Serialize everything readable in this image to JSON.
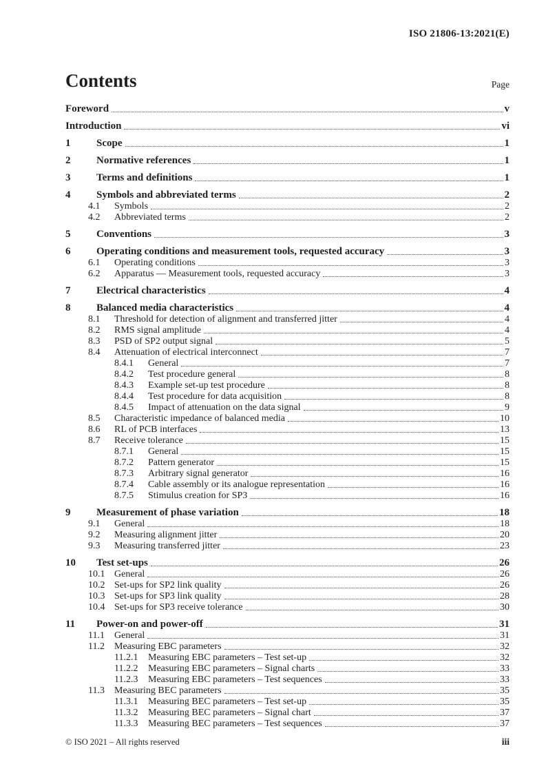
{
  "page": {
    "doc_ref": "ISO 21806-13:2021(E)",
    "title": "Contents",
    "page_column_label": "Page",
    "footer_copyright": "© ISO 2021 – All rights reserved",
    "footer_page_number": "iii",
    "text_color": "#1f1f1f"
  },
  "toc_entries": [
    {
      "level": 0,
      "num": "",
      "title": "Foreword",
      "page": "v"
    },
    {
      "level": 0,
      "num": "",
      "title": "Introduction",
      "page": "vi"
    },
    {
      "level": 1,
      "num": "1",
      "title": "Scope",
      "page": "1"
    },
    {
      "level": 1,
      "num": "2",
      "title": "Normative references",
      "page": "1"
    },
    {
      "level": 1,
      "num": "3",
      "title": "Terms and definitions",
      "page": "1"
    },
    {
      "level": 1,
      "num": "4",
      "title": "Symbols and abbreviated terms",
      "page": "2"
    },
    {
      "level": 2,
      "num": "4.1",
      "title": "Symbols",
      "page": "2"
    },
    {
      "level": 2,
      "num": "4.2",
      "title": "Abbreviated terms",
      "page": "2"
    },
    {
      "level": 1,
      "num": "5",
      "title": "Conventions",
      "page": "3"
    },
    {
      "level": 1,
      "num": "6",
      "title": "Operating conditions and measurement tools, requested accuracy",
      "page": "3"
    },
    {
      "level": 2,
      "num": "6.1",
      "title": "Operating conditions",
      "page": "3"
    },
    {
      "level": 2,
      "num": "6.2",
      "title": "Apparatus — Measurement tools, requested accuracy",
      "page": "3"
    },
    {
      "level": 1,
      "num": "7",
      "title": "Electrical characteristics",
      "page": "4"
    },
    {
      "level": 1,
      "num": "8",
      "title": "Balanced media characteristics",
      "page": "4"
    },
    {
      "level": 2,
      "num": "8.1",
      "title": "Threshold for detection of alignment and transferred jitter",
      "page": "4"
    },
    {
      "level": 2,
      "num": "8.2",
      "title": "RMS signal amplitude",
      "page": "4"
    },
    {
      "level": 2,
      "num": "8.3",
      "title": "PSD of SP2 output signal",
      "page": "5"
    },
    {
      "level": 2,
      "num": "8.4",
      "title": "Attenuation of electrical interconnect",
      "page": "7"
    },
    {
      "level": 3,
      "num": "8.4.1",
      "title": "General",
      "page": "7"
    },
    {
      "level": 3,
      "num": "8.4.2",
      "title": "Test procedure general",
      "page": "8"
    },
    {
      "level": 3,
      "num": "8.4.3",
      "title": "Example set-up test procedure",
      "page": "8"
    },
    {
      "level": 3,
      "num": "8.4.4",
      "title": "Test procedure for data acquisition",
      "page": "8"
    },
    {
      "level": 3,
      "num": "8.4.5",
      "title": "Impact of attenuation on the data signal",
      "page": "9"
    },
    {
      "level": 2,
      "num": "8.5",
      "title": "Characteristic impedance of balanced media",
      "page": "10"
    },
    {
      "level": 2,
      "num": "8.6",
      "title": "RL of PCB interfaces",
      "page": "13"
    },
    {
      "level": 2,
      "num": "8.7",
      "title": "Receive tolerance",
      "page": "15"
    },
    {
      "level": 3,
      "num": "8.7.1",
      "title": "General",
      "page": "15"
    },
    {
      "level": 3,
      "num": "8.7.2",
      "title": "Pattern generator",
      "page": "15"
    },
    {
      "level": 3,
      "num": "8.7.3",
      "title": "Arbitrary signal generator",
      "page": "16"
    },
    {
      "level": 3,
      "num": "8.7.4",
      "title": "Cable assembly or its analogue representation",
      "page": "16"
    },
    {
      "level": 3,
      "num": "8.7.5",
      "title": "Stimulus creation for SP3",
      "page": "16"
    },
    {
      "level": 1,
      "num": "9",
      "title": "Measurement of phase variation",
      "page": "18"
    },
    {
      "level": 2,
      "num": "9.1",
      "title": "General",
      "page": "18"
    },
    {
      "level": 2,
      "num": "9.2",
      "title": "Measuring alignment jitter",
      "page": "20"
    },
    {
      "level": 2,
      "num": "9.3",
      "title": "Measuring transferred jitter",
      "page": "23"
    },
    {
      "level": 1,
      "num": "10",
      "title": "Test set-ups",
      "page": "26"
    },
    {
      "level": 2,
      "num": "10.1",
      "title": "General",
      "page": "26"
    },
    {
      "level": 2,
      "num": "10.2",
      "title": "Set-ups for SP2 link quality",
      "page": "26"
    },
    {
      "level": 2,
      "num": "10.3",
      "title": "Set-ups for SP3 link quality",
      "page": "28"
    },
    {
      "level": 2,
      "num": "10.4",
      "title": "Set-ups for SP3 receive tolerance",
      "page": "30"
    },
    {
      "level": 1,
      "num": "11",
      "title": "Power-on and power-off",
      "page": "31"
    },
    {
      "level": 2,
      "num": "11.1",
      "title": "General",
      "page": "31"
    },
    {
      "level": 2,
      "num": "11.2",
      "title": "Measuring EBC parameters",
      "page": "32"
    },
    {
      "level": 3,
      "num": "11.2.1",
      "title": "Measuring EBC parameters – Test set-up",
      "page": "32"
    },
    {
      "level": 3,
      "num": "11.2.2",
      "title": "Measuring EBC parameters – Signal charts",
      "page": "33"
    },
    {
      "level": 3,
      "num": "11.2.3",
      "title": "Measuring EBC parameters – Test sequences",
      "page": "33"
    },
    {
      "level": 2,
      "num": "11.3",
      "title": "Measuring BEC parameters",
      "page": "35"
    },
    {
      "level": 3,
      "num": "11.3.1",
      "title": "Measuring BEC parameters – Test set-up",
      "page": "35"
    },
    {
      "level": 3,
      "num": "11.3.2",
      "title": "Measuring BEC parameters – Signal chart",
      "page": "37"
    },
    {
      "level": 3,
      "num": "11.3.3",
      "title": "Measuring BEC parameters – Test sequences",
      "page": "37"
    }
  ]
}
